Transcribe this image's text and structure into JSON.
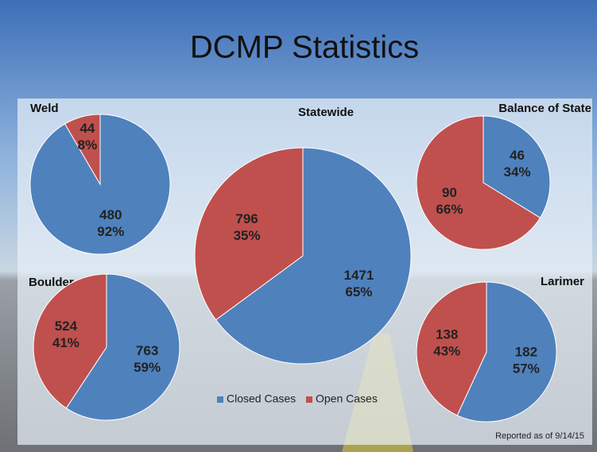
{
  "title": "DCMP Statistics",
  "footnote": "Reported as of 9/14/15",
  "chart_data": [
    {
      "type": "pie",
      "title": "Weld",
      "categories": [
        "Closed Cases",
        "Open Cases"
      ],
      "values": [
        480,
        44
      ],
      "percent_labels": [
        "92%",
        "8%"
      ],
      "colors": [
        "#4f81bd",
        "#c0504d"
      ]
    },
    {
      "type": "pie",
      "title": "Statewide",
      "categories": [
        "Closed Cases",
        "Open Cases"
      ],
      "values": [
        1471,
        796
      ],
      "percent_labels": [
        "65%",
        "35%"
      ],
      "colors": [
        "#4f81bd",
        "#c0504d"
      ],
      "legend": "bottom"
    },
    {
      "type": "pie",
      "title": "Balance of State",
      "categories": [
        "Closed Cases",
        "Open Cases"
      ],
      "values": [
        46,
        90
      ],
      "percent_labels": [
        "34%",
        "66%"
      ],
      "colors": [
        "#4f81bd",
        "#c0504d"
      ]
    },
    {
      "type": "pie",
      "title": "Boulder",
      "categories": [
        "Closed Cases",
        "Open Cases"
      ],
      "values": [
        763,
        524
      ],
      "percent_labels": [
        "59%",
        "41%"
      ],
      "colors": [
        "#4f81bd",
        "#c0504d"
      ]
    },
    {
      "type": "pie",
      "title": "Larimer",
      "categories": [
        "Closed Cases",
        "Open Cases"
      ],
      "values": [
        182,
        138
      ],
      "percent_labels": [
        "57%",
        "43%"
      ],
      "colors": [
        "#4f81bd",
        "#c0504d"
      ]
    }
  ]
}
